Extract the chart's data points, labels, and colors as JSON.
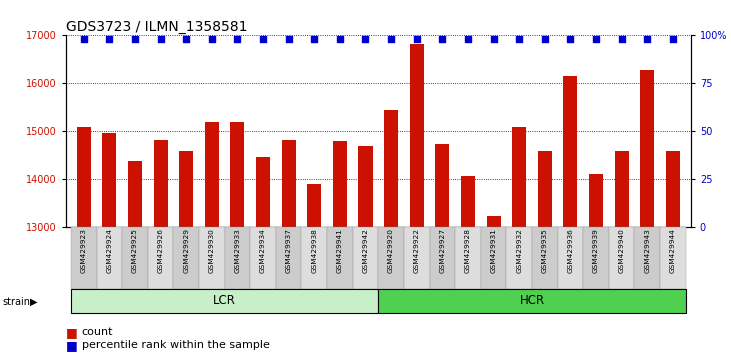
{
  "title": "GDS3723 / ILMN_1358581",
  "samples": [
    "GSM429923",
    "GSM429924",
    "GSM429925",
    "GSM429926",
    "GSM429929",
    "GSM429930",
    "GSM429933",
    "GSM429934",
    "GSM429937",
    "GSM429938",
    "GSM429941",
    "GSM429942",
    "GSM429920",
    "GSM429922",
    "GSM429927",
    "GSM429928",
    "GSM429931",
    "GSM429932",
    "GSM429935",
    "GSM429936",
    "GSM429939",
    "GSM429940",
    "GSM429943",
    "GSM429944"
  ],
  "counts": [
    15080,
    14950,
    14380,
    14820,
    14580,
    15180,
    15180,
    14450,
    14820,
    13900,
    14780,
    14680,
    15430,
    16820,
    14720,
    14060,
    13220,
    15090,
    14580,
    16150,
    14100,
    14580,
    16280,
    14580
  ],
  "groups": [
    "LCR",
    "HCR"
  ],
  "group_sizes": [
    12,
    12
  ],
  "ylim_left": [
    13000,
    17000
  ],
  "ylim_right": [
    0,
    100
  ],
  "yticks_left": [
    13000,
    14000,
    15000,
    16000,
    17000
  ],
  "yticks_right": [
    0,
    25,
    50,
    75,
    100
  ],
  "bar_color": "#cc1100",
  "dot_color": "#0000cc",
  "lcr_color": "#c8f0c8",
  "hcr_color": "#50d050",
  "ylabel_left_color": "#cc1100",
  "ylabel_right_color": "#0000cc",
  "legend_count_color": "#cc1100",
  "legend_pct_color": "#0000cc",
  "title_fontsize": 10,
  "tick_fontsize": 7,
  "legend_fontsize": 8,
  "bar_width": 0.55
}
